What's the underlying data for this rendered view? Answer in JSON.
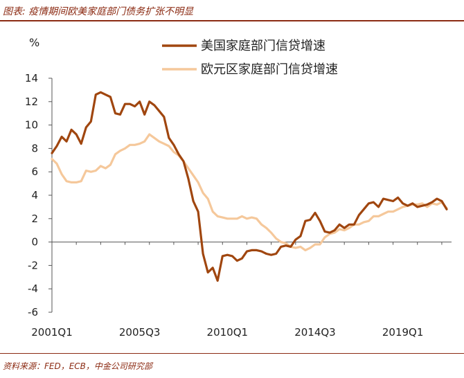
{
  "header": {
    "title": "图表: 疫情期间欧美家庭部门债务扩张不明显"
  },
  "footer": {
    "source": "资料来源：FED，ECB，中金公司研究部"
  },
  "chart_data": {
    "type": "line",
    "unit_label": "%",
    "ylim": [
      -6,
      14
    ],
    "yticks": [
      -6,
      -4,
      -2,
      0,
      2,
      4,
      6,
      8,
      10,
      12,
      14
    ],
    "xlim": [
      2001.0,
      2021.5
    ],
    "x_tick_labels": [
      "2001Q1",
      "2005Q3",
      "2010Q1",
      "2014Q3",
      "2019Q1"
    ],
    "x_tick_positions": [
      2001.0,
      2005.5,
      2010.0,
      2014.5,
      2019.0
    ],
    "grid": false,
    "legend_position": "top-right",
    "colors": {
      "us": "#a0460f",
      "eu": "#f5c89b",
      "accent": "#8b2a12"
    },
    "series": [
      {
        "name": "美国家庭部门信贷增速",
        "color": "#a0460f",
        "points": [
          [
            2001.0,
            7.6
          ],
          [
            2001.25,
            8.2
          ],
          [
            2001.5,
            9.0
          ],
          [
            2001.75,
            8.6
          ],
          [
            2002.0,
            9.6
          ],
          [
            2002.25,
            9.2
          ],
          [
            2002.5,
            8.4
          ],
          [
            2002.75,
            9.8
          ],
          [
            2003.0,
            10.3
          ],
          [
            2003.25,
            12.6
          ],
          [
            2003.5,
            12.8
          ],
          [
            2003.75,
            12.6
          ],
          [
            2004.0,
            12.4
          ],
          [
            2004.25,
            11.0
          ],
          [
            2004.5,
            10.9
          ],
          [
            2004.75,
            11.8
          ],
          [
            2005.0,
            11.8
          ],
          [
            2005.25,
            11.6
          ],
          [
            2005.5,
            12.0
          ],
          [
            2005.75,
            10.9
          ],
          [
            2006.0,
            12.0
          ],
          [
            2006.25,
            11.7
          ],
          [
            2006.5,
            11.2
          ],
          [
            2006.75,
            10.7
          ],
          [
            2007.0,
            8.9
          ],
          [
            2007.25,
            8.3
          ],
          [
            2007.5,
            7.5
          ],
          [
            2007.75,
            6.9
          ],
          [
            2008.0,
            5.4
          ],
          [
            2008.25,
            3.5
          ],
          [
            2008.5,
            2.6
          ],
          [
            2008.75,
            -1.0
          ],
          [
            2009.0,
            -2.6
          ],
          [
            2009.25,
            -2.2
          ],
          [
            2009.5,
            -3.3
          ],
          [
            2009.75,
            -1.2
          ],
          [
            2010.0,
            -1.1
          ],
          [
            2010.25,
            -1.2
          ],
          [
            2010.5,
            -1.6
          ],
          [
            2010.75,
            -1.4
          ],
          [
            2011.0,
            -0.8
          ],
          [
            2011.25,
            -0.7
          ],
          [
            2011.5,
            -0.7
          ],
          [
            2011.75,
            -0.8
          ],
          [
            2012.0,
            -1.0
          ],
          [
            2012.25,
            -1.1
          ],
          [
            2012.5,
            -1.0
          ],
          [
            2012.75,
            -0.4
          ],
          [
            2013.0,
            -0.3
          ],
          [
            2013.25,
            -0.4
          ],
          [
            2013.5,
            0.2
          ],
          [
            2013.75,
            0.5
          ],
          [
            2014.0,
            1.8
          ],
          [
            2014.25,
            1.9
          ],
          [
            2014.5,
            2.5
          ],
          [
            2014.75,
            1.8
          ],
          [
            2015.0,
            0.9
          ],
          [
            2015.25,
            0.8
          ],
          [
            2015.5,
            1.0
          ],
          [
            2015.75,
            1.5
          ],
          [
            2016.0,
            1.2
          ],
          [
            2016.25,
            1.5
          ],
          [
            2016.5,
            1.5
          ],
          [
            2016.75,
            2.3
          ],
          [
            2017.0,
            2.8
          ],
          [
            2017.25,
            3.3
          ],
          [
            2017.5,
            3.4
          ],
          [
            2017.75,
            3.0
          ],
          [
            2018.0,
            3.7
          ],
          [
            2018.25,
            3.6
          ],
          [
            2018.5,
            3.5
          ],
          [
            2018.75,
            3.8
          ],
          [
            2019.0,
            3.3
          ],
          [
            2019.25,
            3.1
          ],
          [
            2019.5,
            3.3
          ],
          [
            2019.75,
            3.0
          ],
          [
            2020.0,
            3.1
          ],
          [
            2020.25,
            3.2
          ],
          [
            2020.5,
            3.4
          ],
          [
            2020.75,
            3.7
          ],
          [
            2021.0,
            3.5
          ],
          [
            2021.25,
            2.8
          ]
        ]
      },
      {
        "name": "欧元区家庭部门信贷增速",
        "color": "#f5c89b",
        "points": [
          [
            2001.0,
            7.1
          ],
          [
            2001.25,
            6.7
          ],
          [
            2001.5,
            5.8
          ],
          [
            2001.75,
            5.2
          ],
          [
            2002.0,
            5.1
          ],
          [
            2002.25,
            5.1
          ],
          [
            2002.5,
            5.2
          ],
          [
            2002.75,
            6.1
          ],
          [
            2003.0,
            6.0
          ],
          [
            2003.25,
            6.1
          ],
          [
            2003.5,
            6.5
          ],
          [
            2003.75,
            6.3
          ],
          [
            2004.0,
            6.6
          ],
          [
            2004.25,
            7.5
          ],
          [
            2004.5,
            7.8
          ],
          [
            2004.75,
            8.0
          ],
          [
            2005.0,
            8.3
          ],
          [
            2005.25,
            8.3
          ],
          [
            2005.5,
            8.4
          ],
          [
            2005.75,
            8.6
          ],
          [
            2006.0,
            9.2
          ],
          [
            2006.25,
            8.9
          ],
          [
            2006.5,
            8.6
          ],
          [
            2006.75,
            8.4
          ],
          [
            2007.0,
            8.2
          ],
          [
            2007.25,
            7.7
          ],
          [
            2007.5,
            7.4
          ],
          [
            2007.75,
            6.9
          ],
          [
            2008.0,
            6.3
          ],
          [
            2008.25,
            5.7
          ],
          [
            2008.5,
            5.1
          ],
          [
            2008.75,
            4.2
          ],
          [
            2009.0,
            3.7
          ],
          [
            2009.25,
            2.6
          ],
          [
            2009.5,
            2.2
          ],
          [
            2009.75,
            2.1
          ],
          [
            2010.0,
            2.0
          ],
          [
            2010.25,
            2.0
          ],
          [
            2010.5,
            2.0
          ],
          [
            2010.75,
            2.2
          ],
          [
            2011.0,
            2.0
          ],
          [
            2011.25,
            2.1
          ],
          [
            2011.5,
            2.0
          ],
          [
            2011.75,
            1.5
          ],
          [
            2012.0,
            1.2
          ],
          [
            2012.25,
            0.8
          ],
          [
            2012.5,
            0.3
          ],
          [
            2012.75,
            0.0
          ],
          [
            2013.0,
            -0.1
          ],
          [
            2013.25,
            -0.4
          ],
          [
            2013.5,
            -0.5
          ],
          [
            2013.75,
            -0.4
          ],
          [
            2014.0,
            -0.7
          ],
          [
            2014.25,
            -0.5
          ],
          [
            2014.5,
            -0.2
          ],
          [
            2014.75,
            -0.2
          ],
          [
            2015.0,
            0.4
          ],
          [
            2015.25,
            0.7
          ],
          [
            2015.5,
            0.8
          ],
          [
            2015.75,
            1.1
          ],
          [
            2016.0,
            1.0
          ],
          [
            2016.25,
            1.2
          ],
          [
            2016.5,
            1.5
          ],
          [
            2016.75,
            1.5
          ],
          [
            2017.0,
            1.7
          ],
          [
            2017.25,
            1.8
          ],
          [
            2017.5,
            2.2
          ],
          [
            2017.75,
            2.2
          ],
          [
            2018.0,
            2.4
          ],
          [
            2018.25,
            2.6
          ],
          [
            2018.5,
            2.6
          ],
          [
            2018.75,
            2.8
          ],
          [
            2019.0,
            3.0
          ],
          [
            2019.25,
            3.1
          ],
          [
            2019.5,
            3.2
          ],
          [
            2019.75,
            3.2
          ],
          [
            2020.0,
            3.3
          ],
          [
            2020.25,
            3.0
          ],
          [
            2020.5,
            3.3
          ],
          [
            2020.75,
            3.2
          ],
          [
            2021.0,
            3.4
          ],
          [
            2021.25,
            2.9
          ]
        ]
      }
    ]
  }
}
